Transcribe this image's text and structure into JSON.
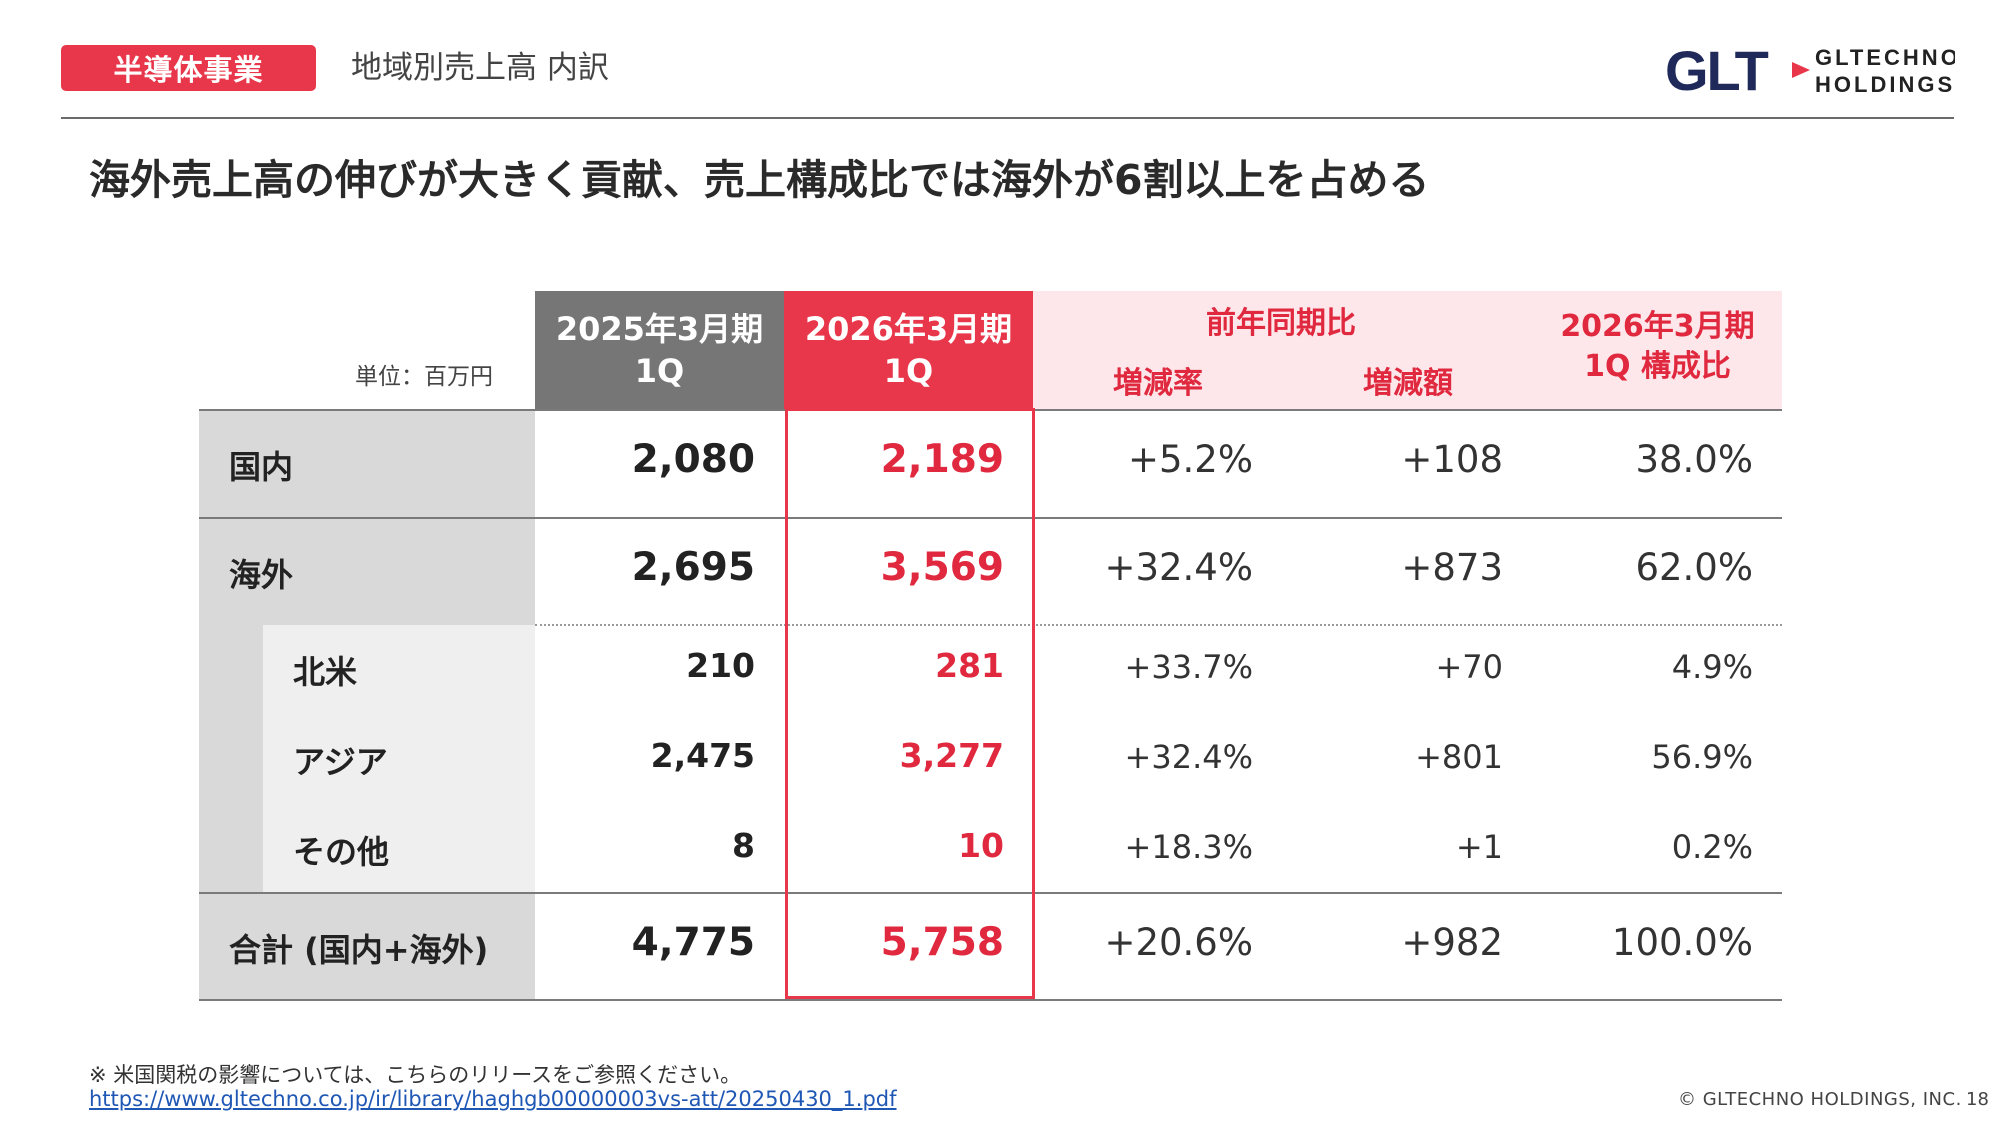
{
  "header": {
    "tag": "半導体事業",
    "subtitle": "地域別売上高 内訳",
    "logo_mark": "GLT",
    "logo_line1": "GLTECHNO",
    "logo_line2": "HOLDINGS"
  },
  "headline": "海外売上高の伸びが大きく貢献、売上構成比では海外が6割以上を占める",
  "table": {
    "unit": "単位：百万円",
    "col_prev": [
      "2025年3月期",
      "1Q"
    ],
    "col_curr": [
      "2026年3月期",
      "1Q"
    ],
    "yoy_group": "前年同期比",
    "yoy_rate": "増減率",
    "yoy_amount": "増減額",
    "comp": [
      "2026年3月期",
      "1Q 構成比"
    ],
    "rows": [
      {
        "label": "国内",
        "prev": "2,080",
        "curr": "2,189",
        "rate": "+5.2%",
        "amount": "+108",
        "comp": "38.0%"
      },
      {
        "label": "海外",
        "prev": "2,695",
        "curr": "3,569",
        "rate": "+32.4%",
        "amount": "+873",
        "comp": "62.0%"
      },
      {
        "label": "北米",
        "prev": "210",
        "curr": "281",
        "rate": "+33.7%",
        "amount": "+70",
        "comp": "4.9%"
      },
      {
        "label": "アジア",
        "prev": "2,475",
        "curr": "3,277",
        "rate": "+32.4%",
        "amount": "+801",
        "comp": "56.9%"
      },
      {
        "label": "その他",
        "prev": "8",
        "curr": "10",
        "rate": "+18.3%",
        "amount": "+1",
        "comp": "0.2%"
      },
      {
        "label": "合計 (国内+海外)",
        "prev": "4,775",
        "curr": "5,758",
        "rate": "+20.6%",
        "amount": "+982",
        "comp": "100.0%"
      }
    ]
  },
  "footer": {
    "note": "※ 米国関税の影響については、こちらのリリースをご参照ください。",
    "link": "https://www.gltechno.co.jp/ir/library/haghgb00000003vs-att/20250430_1.pdf",
    "copyright": "© GLTECHNO HOLDINGS, INC.",
    "page": "18"
  },
  "colors": {
    "accent": "#e8364a",
    "brand_navy": "#1f2a5a",
    "header_gray": "#767676",
    "pink": "#fde7ea"
  }
}
